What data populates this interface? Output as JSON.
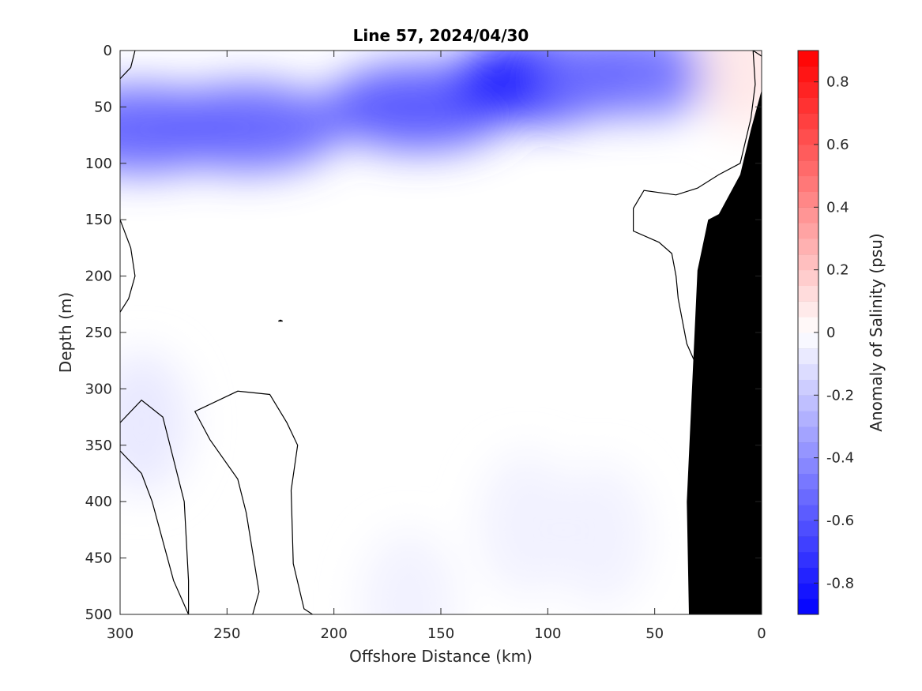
{
  "chart_data": {
    "type": "heatmap",
    "title": "Line 57, 2024/04/30",
    "xlabel": "Offshore Distance (km)",
    "ylabel": "Depth (m)",
    "xlim": [
      300,
      0
    ],
    "ylim": [
      0,
      500
    ],
    "x_reversed": true,
    "y_reversed": true,
    "xticks": [
      300,
      250,
      200,
      150,
      100,
      50,
      0
    ],
    "yticks": [
      0,
      50,
      100,
      150,
      200,
      250,
      300,
      350,
      400,
      450,
      500
    ],
    "colorbar": {
      "label": "Anomaly of Salinity (psu)",
      "range": [
        -0.9,
        0.9
      ],
      "step": 0.05,
      "ticks": [
        -0.8,
        -0.6,
        -0.4,
        -0.2,
        0,
        0.2,
        0.4,
        0.6,
        0.8
      ],
      "tick_labels": [
        "-0.8",
        "-0.6",
        "-0.4",
        "-0.2",
        "0",
        "0.2",
        "0.4",
        "0.6",
        "0.8"
      ],
      "colormap": "blue-white-red"
    },
    "colors": {
      "negative_max": "#0000ff",
      "zero": "#ffffff",
      "positive_max": "#ff0000",
      "seafloor": "#000000"
    },
    "anomaly_features": [
      {
        "x": 290,
        "y": 70,
        "value": -0.55
      },
      {
        "x": 240,
        "y": 68,
        "value": -0.55
      },
      {
        "x": 160,
        "y": 50,
        "value": -0.6
      },
      {
        "x": 100,
        "y": 25,
        "value": -0.8
      },
      {
        "x": 60,
        "y": 20,
        "value": -0.5
      },
      {
        "x": 8,
        "y": 10,
        "value": 0.08
      },
      {
        "x": 290,
        "y": 330,
        "value": -0.08
      },
      {
        "x": 165,
        "y": 490,
        "value": -0.05
      },
      {
        "x": 75,
        "y": 430,
        "value": -0.05
      },
      {
        "x": 110,
        "y": 420,
        "value": -0.05
      }
    ],
    "zero_contours": [
      {
        "name": "top-left",
        "points": [
          [
            300,
            25
          ],
          [
            295,
            15
          ],
          [
            293,
            0
          ]
        ]
      },
      {
        "name": "left",
        "points": [
          [
            300,
            150
          ],
          [
            295,
            175
          ],
          [
            293,
            200
          ],
          [
            296,
            220
          ],
          [
            300,
            232
          ]
        ]
      },
      {
        "name": "lens-bottom-left",
        "points": [
          [
            268,
            500
          ],
          [
            268,
            470
          ],
          [
            270,
            400
          ],
          [
            280,
            325
          ],
          [
            290,
            310
          ],
          [
            300,
            330
          ],
          [
            300,
            355
          ],
          [
            290,
            375
          ],
          [
            285,
            400
          ],
          [
            275,
            470
          ],
          [
            268,
            500
          ]
        ]
      },
      {
        "name": "lens-outline",
        "points": [
          [
            238,
            500
          ],
          [
            235,
            480
          ],
          [
            241,
            410
          ],
          [
            245,
            380
          ],
          [
            258,
            345
          ],
          [
            265,
            320
          ],
          [
            245,
            302
          ],
          [
            230,
            305
          ],
          [
            222,
            330
          ],
          [
            217,
            350
          ],
          [
            220,
            390
          ],
          [
            219,
            455
          ],
          [
            214,
            495
          ],
          [
            210,
            500
          ]
        ]
      },
      {
        "name": "point",
        "points": [
          [
            226,
            240
          ],
          [
            225,
            239
          ],
          [
            224,
            240
          ],
          [
            226,
            240
          ]
        ]
      },
      {
        "name": "nearshore",
        "points": [
          [
            0,
            5
          ],
          [
            4,
            0
          ],
          [
            3,
            30
          ],
          [
            5,
            60
          ],
          [
            10,
            100
          ],
          [
            20,
            110
          ],
          [
            30,
            122
          ],
          [
            40,
            128
          ],
          [
            55,
            124
          ],
          [
            60,
            140
          ],
          [
            60,
            160
          ],
          [
            48,
            170
          ],
          [
            42,
            180
          ],
          [
            40,
            200
          ],
          [
            39,
            220
          ],
          [
            35,
            260
          ],
          [
            28,
            290
          ],
          [
            27,
            330
          ],
          [
            28,
            365
          ],
          [
            26,
            400
          ]
        ]
      }
    ],
    "bathymetry": [
      [
        0,
        35
      ],
      [
        5,
        70
      ],
      [
        10,
        110
      ],
      [
        20,
        145
      ],
      [
        25,
        150
      ],
      [
        30,
        195
      ],
      [
        35,
        400
      ],
      [
        34,
        500
      ],
      [
        0,
        500
      ]
    ]
  }
}
